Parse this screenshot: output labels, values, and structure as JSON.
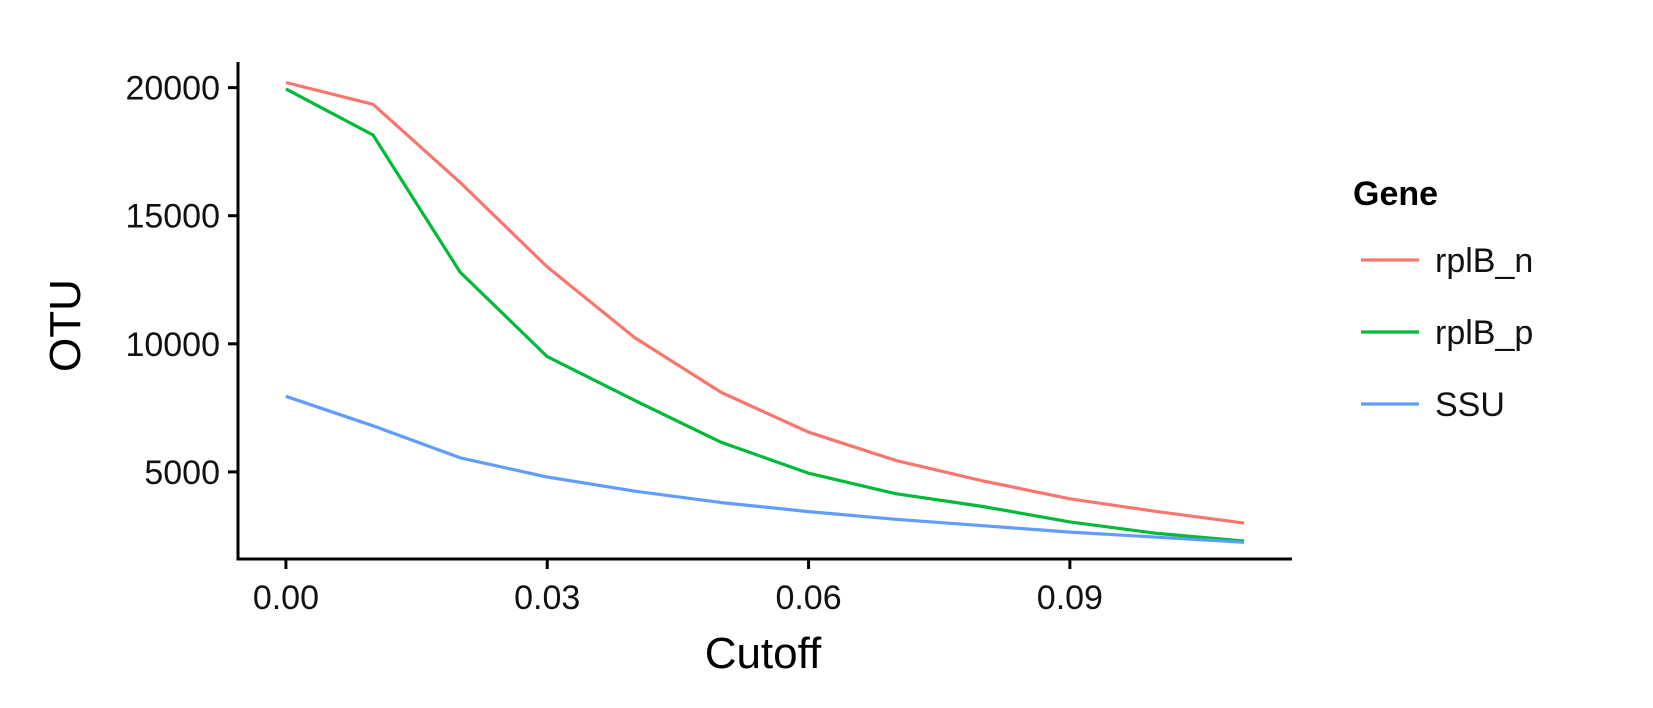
{
  "chart_data": {
    "type": "line",
    "title": "",
    "xlabel": "Cutoff",
    "ylabel": "OTU",
    "x": [
      0.0,
      0.01,
      0.02,
      0.03,
      0.04,
      0.05,
      0.06,
      0.07,
      0.08,
      0.09,
      0.1,
      0.11
    ],
    "xlim": [
      -0.0055,
      0.1155
    ],
    "ylim": [
      1600,
      21000
    ],
    "x_ticks": [
      0.0,
      0.03,
      0.06,
      0.09
    ],
    "x_tick_labels": [
      "0.00",
      "0.03",
      "0.06",
      "0.09"
    ],
    "y_ticks": [
      5000,
      10000,
      15000,
      20000
    ],
    "y_tick_labels": [
      "5000",
      "10000",
      "15000",
      "20000"
    ],
    "grid": false,
    "legend": {
      "title": "Gene",
      "position": "right"
    },
    "series": [
      {
        "name": "rplB_n",
        "color": "#F8766D",
        "values": [
          20200,
          19350,
          16300,
          13000,
          10250,
          8100,
          6550,
          5450,
          4650,
          3950,
          3450,
          3000
        ]
      },
      {
        "name": "rplB_p",
        "color": "#00BA38",
        "values": [
          19950,
          18150,
          12800,
          9500,
          7800,
          6150,
          4950,
          4150,
          3650,
          3050,
          2600,
          2300
        ]
      },
      {
        "name": "SSU",
        "color": "#619CFF",
        "values": [
          7950,
          6800,
          5550,
          4800,
          4250,
          3800,
          3450,
          3150,
          2900,
          2650,
          2450,
          2250
        ]
      }
    ]
  }
}
